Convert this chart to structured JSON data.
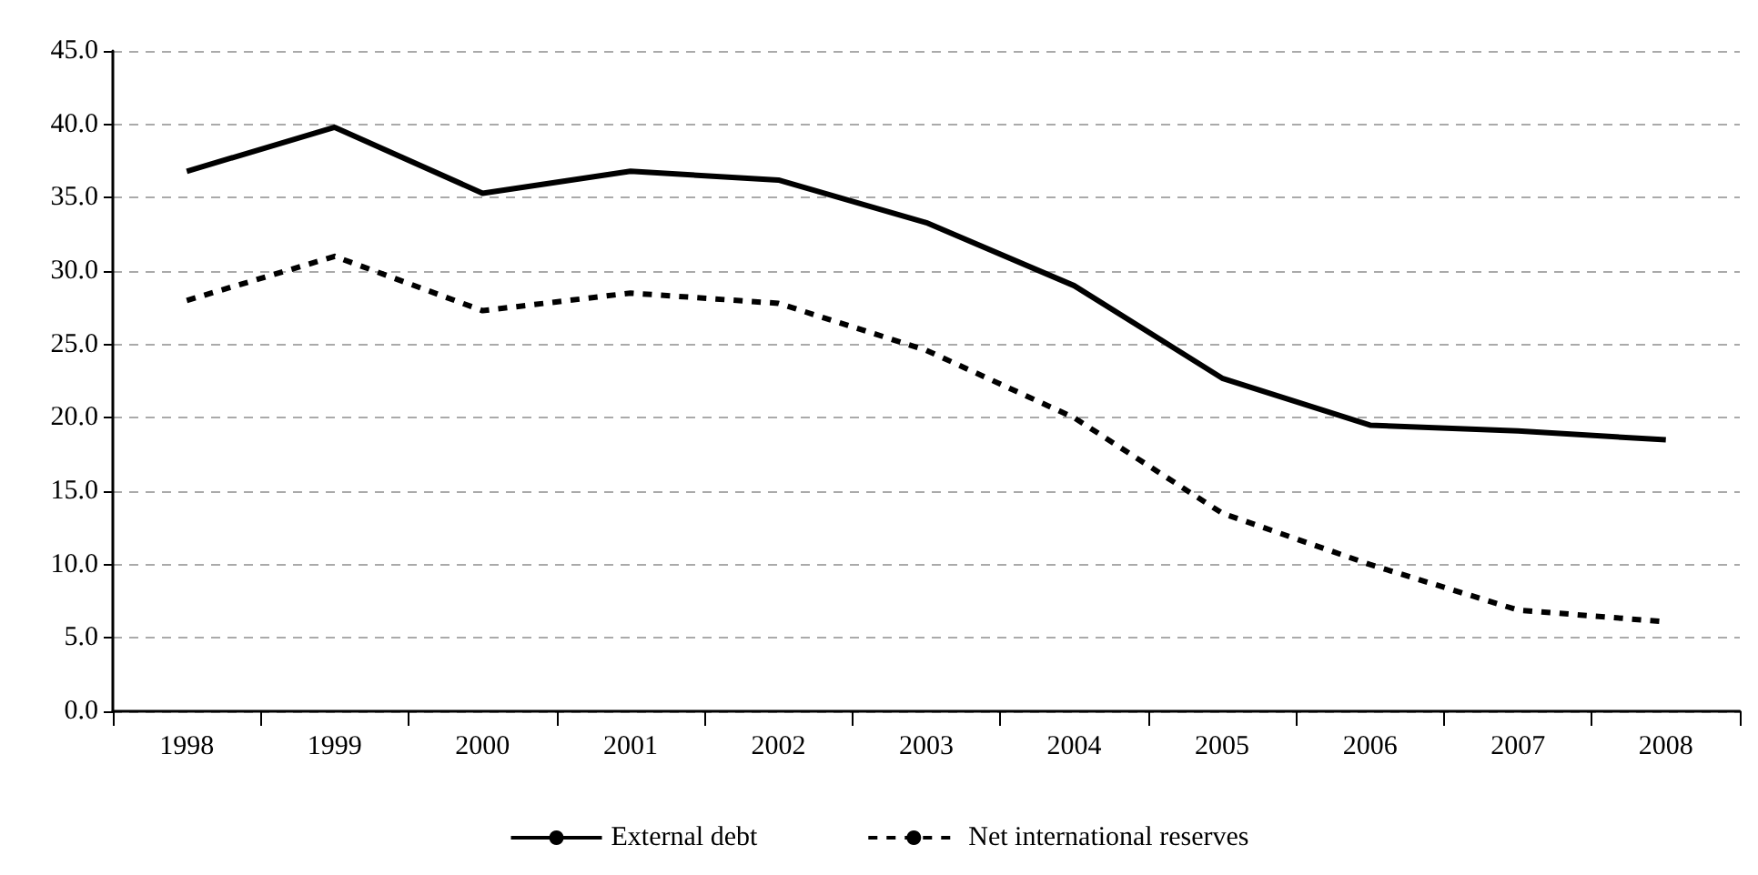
{
  "chart_data": {
    "type": "line",
    "categories": [
      "1998",
      "1999",
      "2000",
      "2001",
      "2002",
      "2003",
      "2004",
      "2005",
      "2006",
      "2007",
      "2008"
    ],
    "series": [
      {
        "name": "External debt",
        "color": "#000000",
        "line_style": "solid",
        "values": [
          36.8,
          39.8,
          35.3,
          36.8,
          36.2,
          33.3,
          29.0,
          22.7,
          19.5,
          19.1,
          18.5
        ]
      },
      {
        "name": "Net international reserves",
        "color": "#000000",
        "line_style": "dashed",
        "values": [
          28.0,
          31.0,
          27.3,
          28.5,
          27.8,
          24.6,
          20.0,
          13.5,
          10.0,
          6.9,
          6.1
        ]
      }
    ],
    "ylim": [
      0,
      45
    ],
    "yticks": [
      {
        "value": 0,
        "label": "0.0"
      },
      {
        "value": 5,
        "label": "5.0"
      },
      {
        "value": 10,
        "label": "10.0"
      },
      {
        "value": 15,
        "label": "15.0"
      },
      {
        "value": 20,
        "label": "20.0"
      },
      {
        "value": 25,
        "label": "25.0"
      },
      {
        "value": 30,
        "label": "30.0"
      },
      {
        "value": 35,
        "label": "35.0"
      },
      {
        "value": 40,
        "label": "40.0"
      },
      {
        "value": 45,
        "label": "45.0"
      }
    ],
    "grid": "y",
    "legend": "bottom",
    "marker": "none"
  }
}
